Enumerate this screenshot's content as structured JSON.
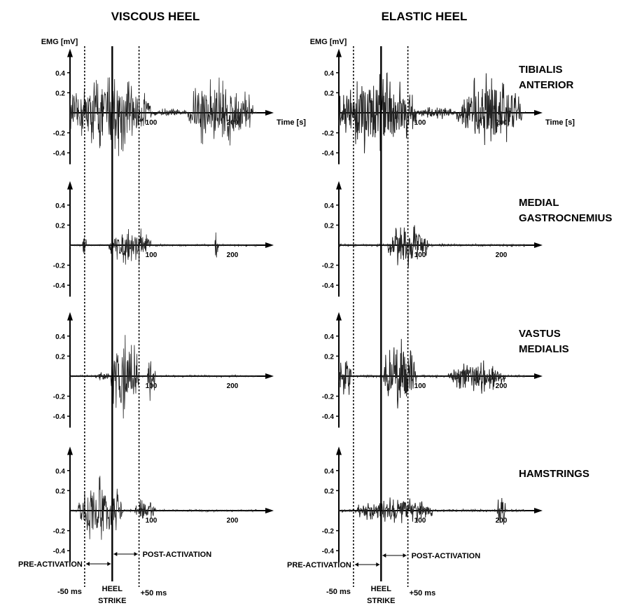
{
  "chart_data": {
    "type": "line",
    "columns": [
      {
        "key": "viscous",
        "title": "VISCOUS HEEL"
      },
      {
        "key": "elastic",
        "title": "ELASTIC HEEL"
      }
    ],
    "rows": [
      {
        "key": "ta",
        "label_lines": [
          "TIBIALIS",
          "ANTERIOR"
        ]
      },
      {
        "key": "mg",
        "label_lines": [
          "MEDIAL",
          "GASTROCNEMIUS"
        ]
      },
      {
        "key": "vm",
        "label_lines": [
          "VASTUS",
          "MEDIALIS"
        ]
      },
      {
        "key": "ham",
        "label_lines": [
          "HAMSTRINGS"
        ]
      }
    ],
    "ylabel": "EMG [mV]",
    "xlabel": "Time [s]",
    "y_ticks": [
      "0.4",
      "0.2",
      "-0.2",
      "-0.4"
    ],
    "x_ticks": [
      "100",
      "200"
    ],
    "ylim": [
      -0.5,
      0.5
    ],
    "xlim": [
      0,
      230
    ],
    "heel_strike_x": 52,
    "pre_marker_x": 18,
    "post_marker_x": 85,
    "annotations": {
      "pre_activation": "PRE-ACTIVATION",
      "post_activation": "POST-ACTIVATION",
      "minus50": "-50 ms",
      "plus50": "+50 ms",
      "heel": "HEEL",
      "strike": "STRIKE"
    },
    "bursts": {
      "viscous": {
        "ta": [
          {
            "x0": 0,
            "x1": 100,
            "amp": 0.45
          },
          {
            "x0": 100,
            "x1": 145,
            "amp": 0.05
          },
          {
            "x0": 145,
            "x1": 225,
            "amp": 0.45
          }
        ],
        "mg": [
          {
            "x0": 15,
            "x1": 20,
            "amp": 0.15
          },
          {
            "x0": 48,
            "x1": 100,
            "amp": 0.22
          },
          {
            "x0": 178,
            "x1": 183,
            "amp": 0.27
          }
        ],
        "vm": [
          {
            "x0": 30,
            "x1": 50,
            "amp": 0.05
          },
          {
            "x0": 50,
            "x1": 85,
            "amp": 0.55
          },
          {
            "x0": 95,
            "x1": 105,
            "amp": 0.3
          }
        ],
        "ham": [
          {
            "x0": 10,
            "x1": 65,
            "amp": 0.38
          },
          {
            "x0": 80,
            "x1": 105,
            "amp": 0.15
          }
        ]
      },
      "elastic": {
        "ta": [
          {
            "x0": 0,
            "x1": 95,
            "amp": 0.45
          },
          {
            "x0": 95,
            "x1": 145,
            "amp": 0.07
          },
          {
            "x0": 145,
            "x1": 225,
            "amp": 0.45
          }
        ],
        "mg": [
          {
            "x0": 60,
            "x1": 110,
            "amp": 0.25
          }
        ],
        "vm": [
          {
            "x0": 0,
            "x1": 15,
            "amp": 0.3
          },
          {
            "x0": 55,
            "x1": 95,
            "amp": 0.45
          },
          {
            "x0": 135,
            "x1": 205,
            "amp": 0.18
          }
        ],
        "ham": [
          {
            "x0": 20,
            "x1": 115,
            "amp": 0.15
          },
          {
            "x0": 195,
            "x1": 205,
            "amp": 0.25
          }
        ]
      }
    }
  }
}
